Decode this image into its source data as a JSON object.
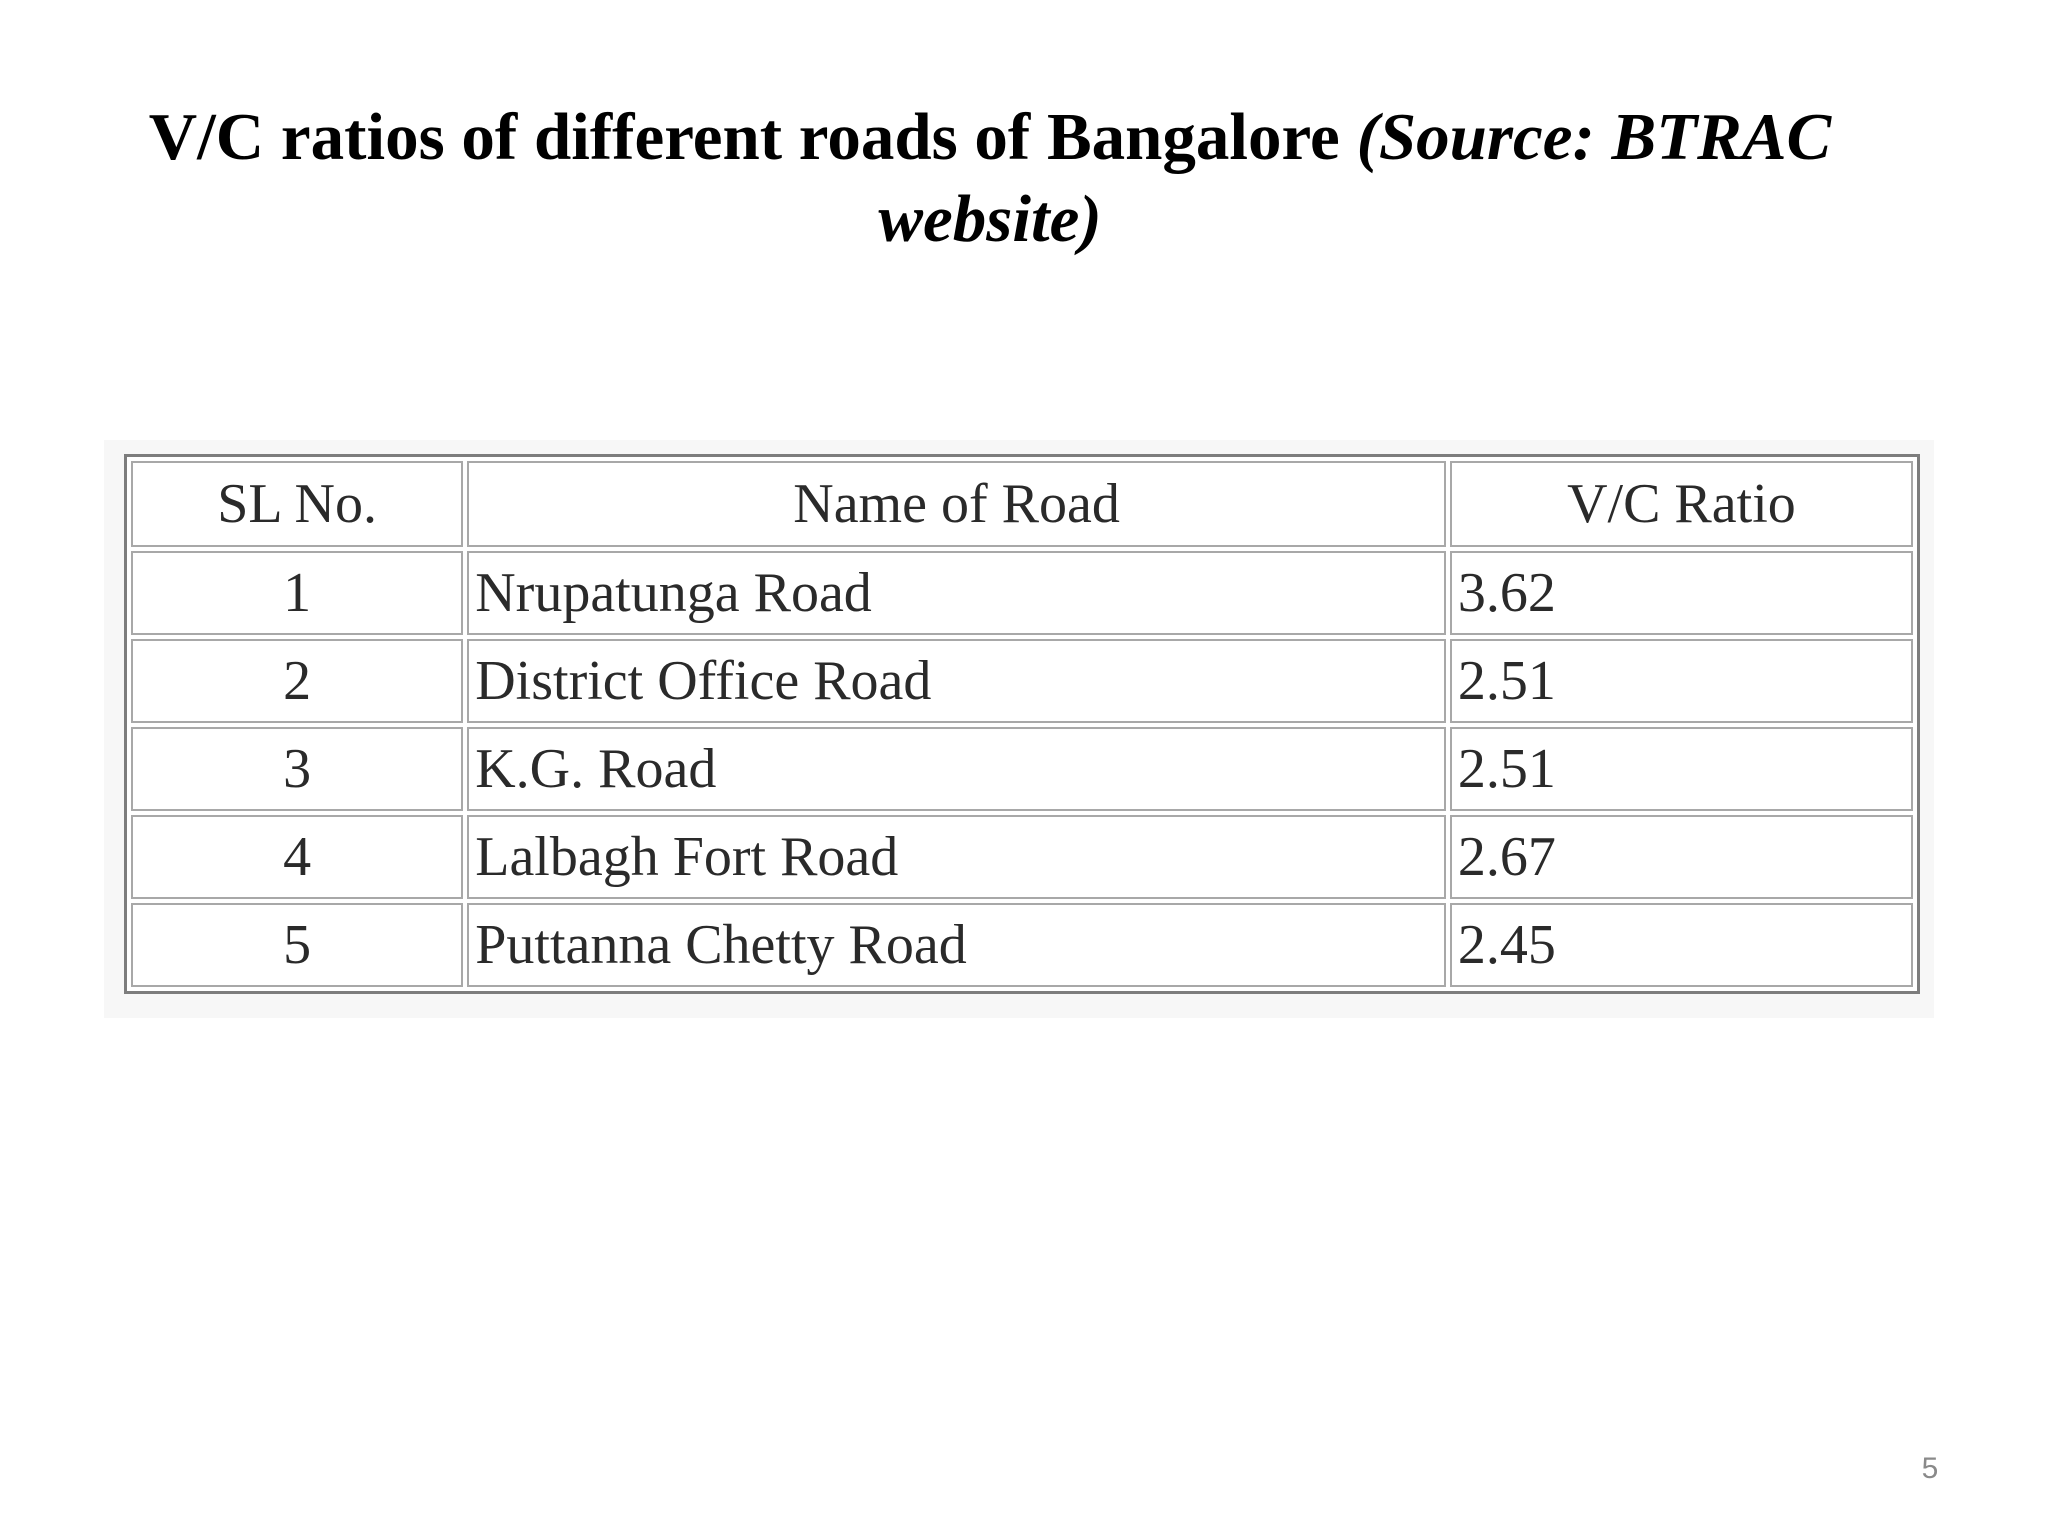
{
  "slide": {
    "title_main": "V/C ratios of different roads of Bangalore ",
    "title_source": "(Source: BTRAC website)",
    "page_number": "5"
  },
  "table": {
    "headers": {
      "sl": "SL No.",
      "name": "Name of Road",
      "vc": "V/C Ratio"
    },
    "rows": [
      {
        "sl": "1",
        "name": "Nrupatunga Road",
        "vc": "3.62"
      },
      {
        "sl": "2",
        "name": "District Office Road",
        "vc": "2.51"
      },
      {
        "sl": "3",
        "name": "K.G. Road",
        "vc": "2.51"
      },
      {
        "sl": "4",
        "name": "Lalbagh Fort Road",
        "vc": "2.67"
      },
      {
        "sl": "5",
        "name": "Puttanna Chetty Road",
        "vc": "2.45"
      }
    ]
  }
}
